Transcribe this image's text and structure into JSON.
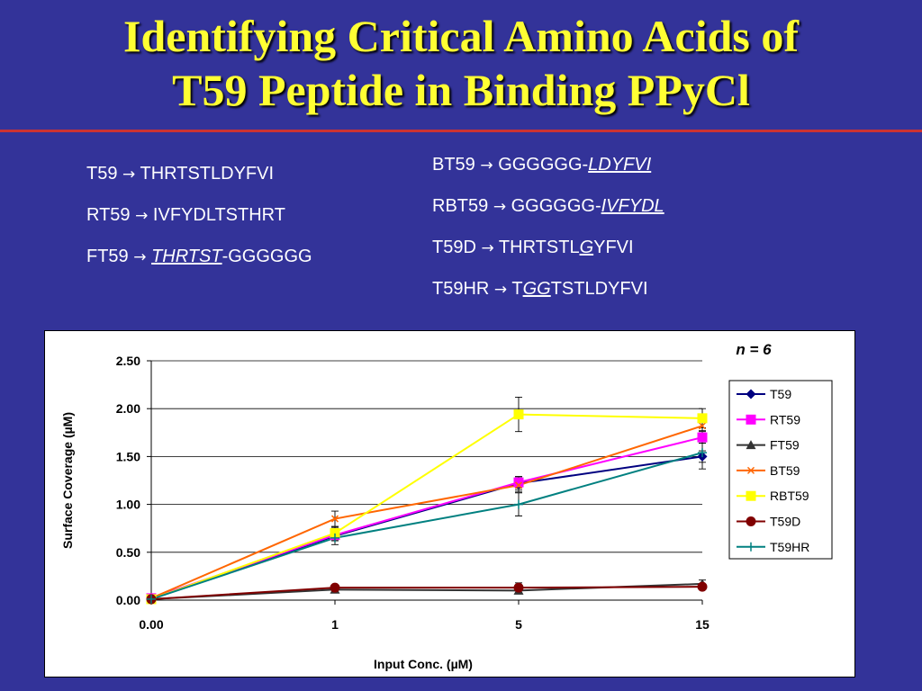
{
  "slide": {
    "title_line1": "Identifying Critical Amino Acids of",
    "title_line2": "T59 Peptide in Binding PPyCl"
  },
  "sequences": {
    "left": [
      {
        "name": "T59",
        "arrow": "→",
        "pre": "THRTSTLDYFVI",
        "mod": "",
        "post": ""
      },
      {
        "name": "RT59",
        "arrow": "→",
        "pre": "IVFYDLTSTHRT",
        "mod": "",
        "post": ""
      },
      {
        "name": "FT59",
        "arrow": "→",
        "pre": "",
        "mod": "THRTST",
        "post": "-GGGGGG"
      }
    ],
    "right": [
      {
        "name": "BT59",
        "arrow": "→",
        "pre": "GGGGGG-",
        "mod": "LDYFVI",
        "post": ""
      },
      {
        "name": "RBT59",
        "arrow": "→",
        "pre": "GGGGGG-",
        "mod": "IVFYDL",
        "post": ""
      },
      {
        "name": "T59D",
        "arrow": "→",
        "pre": "THRTSTL",
        "mod": "G",
        "post": "YFVI"
      },
      {
        "name": "T59HR",
        "arrow": "→",
        "pre": "T",
        "mod": "GG",
        "post": "TSTLDYFVI"
      }
    ]
  },
  "chart_data": {
    "type": "line",
    "annotation": "n = 6",
    "xlabel": "Input Conc. (µM)",
    "ylabel": "Surface Coverage (µM)",
    "categories": [
      "0.00",
      "1",
      "5",
      "15"
    ],
    "ylim": [
      0,
      2.5
    ],
    "yticks": [
      "0.00",
      "0.50",
      "1.00",
      "1.50",
      "2.00",
      "2.50"
    ],
    "grid": "horizontal",
    "legend": "right",
    "series": [
      {
        "name": "T59",
        "color": "#000080",
        "marker": "diamond",
        "values": [
          0.02,
          0.67,
          1.22,
          1.5
        ],
        "errors": [
          0,
          0.05,
          0.07,
          0.06
        ]
      },
      {
        "name": "RT59",
        "color": "#ff00ff",
        "marker": "square",
        "values": [
          0.02,
          0.68,
          1.23,
          1.7
        ],
        "errors": [
          0,
          0.05,
          0.06,
          0.06
        ]
      },
      {
        "name": "FT59",
        "color": "#333333",
        "marker": "triangle",
        "values": [
          0.01,
          0.11,
          0.1,
          0.17
        ],
        "errors": [
          0,
          0.02,
          0.03,
          0.04
        ]
      },
      {
        "name": "BT59",
        "color": "#ff6600",
        "marker": "x",
        "values": [
          0.02,
          0.85,
          1.2,
          1.82
        ],
        "errors": [
          0,
          0.08,
          0.07,
          0.05
        ]
      },
      {
        "name": "RBT59",
        "color": "#ffff00",
        "marker": "square",
        "values": [
          0.01,
          0.7,
          1.94,
          1.9
        ],
        "errors": [
          0,
          0.06,
          0.18,
          0.1
        ]
      },
      {
        "name": "T59D",
        "color": "#800000",
        "marker": "circle",
        "values": [
          0.01,
          0.13,
          0.13,
          0.14
        ],
        "errors": [
          0,
          0.02,
          0.05,
          0.03
        ]
      },
      {
        "name": "T59HR",
        "color": "#008080",
        "marker": "plus",
        "values": [
          0.01,
          0.65,
          1.0,
          1.54
        ],
        "errors": [
          0,
          0.07,
          0.12,
          0.17
        ]
      }
    ]
  }
}
